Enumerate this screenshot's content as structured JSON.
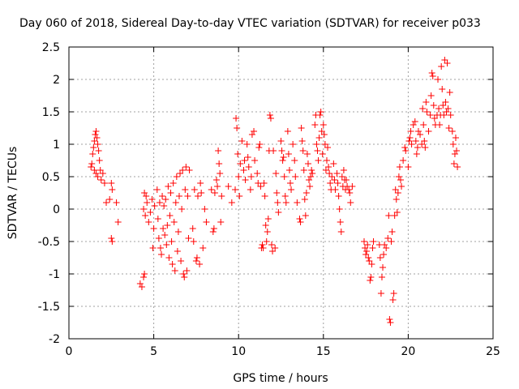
{
  "chart_data": {
    "type": "scatter",
    "title": "Day 060 of 2018, Sidereal Day-to-day VTEC variation (SDTVAR) for receiver p033",
    "xlabel": "GPS time / hours",
    "ylabel": "SDTVAR / TECUs",
    "xlim": [
      0,
      25
    ],
    "ylim": [
      -2,
      2.5
    ],
    "xticks": [
      0,
      5,
      10,
      15,
      20,
      25
    ],
    "xtick_labels": [
      "0",
      "5",
      "10",
      "15",
      "20",
      "25"
    ],
    "yticks": [
      -2,
      -1.5,
      -1,
      -0.5,
      0,
      0.5,
      1,
      1.5,
      2,
      2.5
    ],
    "ytick_labels": [
      "-2",
      "-1.5",
      "-1",
      "-0.5",
      "0",
      "0.5",
      "1",
      "1.5",
      "2",
      "2.5"
    ],
    "grid": true,
    "marker": "+",
    "color": "#ff0000",
    "series": [
      {
        "name": "SDTVAR",
        "points": [
          [
            1.3,
            0.65
          ],
          [
            1.35,
            0.7
          ],
          [
            1.4,
            0.85
          ],
          [
            1.45,
            0.95
          ],
          [
            1.5,
            1.05
          ],
          [
            1.55,
            1.15
          ],
          [
            1.6,
            1.2
          ],
          [
            1.65,
            1.1
          ],
          [
            1.7,
            1.0
          ],
          [
            1.75,
            0.9
          ],
          [
            1.8,
            0.75
          ],
          [
            1.5,
            0.6
          ],
          [
            1.6,
            0.55
          ],
          [
            1.7,
            0.5
          ],
          [
            1.85,
            0.6
          ],
          [
            1.9,
            0.45
          ],
          [
            2.0,
            0.55
          ],
          [
            2.1,
            0.4
          ],
          [
            2.2,
            0.1
          ],
          [
            2.4,
            0.15
          ],
          [
            2.5,
            0.4
          ],
          [
            2.55,
            0.3
          ],
          [
            2.5,
            -0.45
          ],
          [
            2.55,
            -0.5
          ],
          [
            2.8,
            0.1
          ],
          [
            2.9,
            -0.2
          ],
          [
            4.2,
            -1.15
          ],
          [
            4.3,
            -1.2
          ],
          [
            4.4,
            0.0
          ],
          [
            4.45,
            0.25
          ],
          [
            4.5,
            -0.1
          ],
          [
            4.55,
            0.2
          ],
          [
            4.4,
            -1.05
          ],
          [
            4.45,
            -1.0
          ],
          [
            4.6,
            0.1
          ],
          [
            4.7,
            -0.2
          ],
          [
            4.8,
            -0.05
          ],
          [
            4.9,
            0.15
          ],
          [
            4.95,
            -0.6
          ],
          [
            5.0,
            -0.3
          ],
          [
            5.05,
            0.05
          ],
          [
            5.2,
            0.3
          ],
          [
            5.25,
            -0.15
          ],
          [
            5.3,
            -0.45
          ],
          [
            5.35,
            0.1
          ],
          [
            5.4,
            -0.6
          ],
          [
            5.45,
            -0.7
          ],
          [
            5.5,
            0.2
          ],
          [
            5.55,
            -0.3
          ],
          [
            5.6,
            0.05
          ],
          [
            5.65,
            -0.4
          ],
          [
            5.7,
            0.15
          ],
          [
            5.75,
            -0.55
          ],
          [
            5.8,
            -0.25
          ],
          [
            5.85,
            0.35
          ],
          [
            5.9,
            -0.75
          ],
          [
            5.95,
            -0.1
          ],
          [
            6.0,
            0.25
          ],
          [
            6.05,
            -0.5
          ],
          [
            6.1,
            -0.85
          ],
          [
            6.15,
            0.4
          ],
          [
            6.2,
            -0.2
          ],
          [
            6.25,
            -0.95
          ],
          [
            6.3,
            0.1
          ],
          [
            6.35,
            0.5
          ],
          [
            6.4,
            -0.65
          ],
          [
            6.45,
            -0.35
          ],
          [
            6.5,
            0.2
          ],
          [
            6.55,
            0.55
          ],
          [
            6.6,
            -0.8
          ],
          [
            6.65,
            0.0
          ],
          [
            6.7,
            0.6
          ],
          [
            6.75,
            -1.0
          ],
          [
            6.8,
            -1.05
          ],
          [
            6.85,
            0.3
          ],
          [
            6.9,
            0.65
          ],
          [
            6.95,
            -0.95
          ],
          [
            7.0,
            0.2
          ],
          [
            7.05,
            -0.45
          ],
          [
            7.1,
            0.6
          ],
          [
            7.3,
            -0.3
          ],
          [
            7.35,
            -0.5
          ],
          [
            7.4,
            0.3
          ],
          [
            7.5,
            -0.8
          ],
          [
            7.55,
            -0.75
          ],
          [
            7.6,
            0.2
          ],
          [
            7.7,
            -0.85
          ],
          [
            7.75,
            0.4
          ],
          [
            7.8,
            0.25
          ],
          [
            7.9,
            -0.6
          ],
          [
            8.0,
            0.0
          ],
          [
            8.1,
            -0.2
          ],
          [
            8.4,
            0.3
          ],
          [
            8.5,
            -0.35
          ],
          [
            8.55,
            -0.3
          ],
          [
            8.6,
            0.25
          ],
          [
            8.7,
            0.45
          ],
          [
            8.75,
            0.35
          ],
          [
            8.8,
            0.9
          ],
          [
            8.85,
            0.7
          ],
          [
            8.9,
            0.55
          ],
          [
            8.95,
            -0.2
          ],
          [
            9.0,
            0.2
          ],
          [
            9.4,
            0.35
          ],
          [
            9.6,
            0.1
          ],
          [
            9.8,
            0.3
          ],
          [
            9.85,
            1.4
          ],
          [
            9.9,
            1.25
          ],
          [
            9.95,
            0.85
          ],
          [
            10.0,
            0.5
          ],
          [
            10.05,
            0.2
          ],
          [
            10.1,
            0.7
          ],
          [
            10.2,
            1.05
          ],
          [
            10.3,
            0.6
          ],
          [
            10.35,
            0.75
          ],
          [
            10.4,
            0.45
          ],
          [
            10.5,
            1.0
          ],
          [
            10.55,
            0.8
          ],
          [
            10.6,
            0.65
          ],
          [
            10.7,
            0.3
          ],
          [
            10.75,
            0.5
          ],
          [
            10.8,
            1.15
          ],
          [
            10.9,
            1.2
          ],
          [
            10.95,
            0.75
          ],
          [
            11.1,
            0.55
          ],
          [
            11.15,
            0.4
          ],
          [
            11.2,
            0.95
          ],
          [
            11.25,
            1.0
          ],
          [
            11.3,
            0.35
          ],
          [
            11.35,
            -0.6
          ],
          [
            11.4,
            -0.55
          ],
          [
            11.45,
            -0.6
          ],
          [
            11.5,
            0.4
          ],
          [
            11.55,
            0.2
          ],
          [
            11.6,
            -0.25
          ],
          [
            11.65,
            -0.5
          ],
          [
            11.7,
            -0.35
          ],
          [
            11.75,
            -0.15
          ],
          [
            11.8,
            0.9
          ],
          [
            11.85,
            1.45
          ],
          [
            11.9,
            1.4
          ],
          [
            11.95,
            -0.55
          ],
          [
            12.0,
            -0.65
          ],
          [
            12.05,
            0.9
          ],
          [
            12.15,
            -0.6
          ],
          [
            12.2,
            0.55
          ],
          [
            12.25,
            0.25
          ],
          [
            12.3,
            0.1
          ],
          [
            12.35,
            -0.05
          ],
          [
            12.5,
            1.05
          ],
          [
            12.55,
            0.9
          ],
          [
            12.6,
            0.75
          ],
          [
            12.65,
            0.8
          ],
          [
            12.7,
            0.5
          ],
          [
            12.75,
            0.2
          ],
          [
            12.8,
            0.1
          ],
          [
            12.9,
            1.2
          ],
          [
            12.95,
            0.85
          ],
          [
            13.0,
            0.6
          ],
          [
            13.05,
            0.4
          ],
          [
            13.1,
            0.3
          ],
          [
            13.2,
            1.0
          ],
          [
            13.3,
            0.75
          ],
          [
            13.35,
            0.5
          ],
          [
            13.45,
            0.1
          ],
          [
            13.6,
            -0.15
          ],
          [
            13.65,
            -0.2
          ],
          [
            13.7,
            1.25
          ],
          [
            13.75,
            1.05
          ],
          [
            13.8,
            0.9
          ],
          [
            13.85,
            0.6
          ],
          [
            13.9,
            0.15
          ],
          [
            13.95,
            -0.1
          ],
          [
            14.0,
            0.25
          ],
          [
            14.05,
            0.85
          ],
          [
            14.1,
            0.7
          ],
          [
            14.15,
            0.45
          ],
          [
            14.2,
            0.35
          ],
          [
            14.25,
            0.5
          ],
          [
            14.3,
            0.6
          ],
          [
            14.35,
            0.55
          ],
          [
            14.5,
            1.3
          ],
          [
            14.55,
            1.45
          ],
          [
            14.6,
            1.0
          ],
          [
            14.65,
            0.9
          ],
          [
            14.7,
            0.75
          ],
          [
            14.75,
            1.1
          ],
          [
            14.8,
            1.45
          ],
          [
            14.85,
            1.5
          ],
          [
            14.9,
            1.2
          ],
          [
            14.95,
            0.85
          ],
          [
            15.0,
            1.3
          ],
          [
            15.05,
            1.15
          ],
          [
            15.1,
            1.0
          ],
          [
            15.15,
            0.6
          ],
          [
            15.2,
            0.75
          ],
          [
            15.25,
            0.95
          ],
          [
            15.3,
            0.65
          ],
          [
            15.35,
            0.55
          ],
          [
            15.4,
            0.4
          ],
          [
            15.45,
            0.3
          ],
          [
            15.5,
            0.5
          ],
          [
            15.6,
            0.7
          ],
          [
            15.65,
            0.45
          ],
          [
            15.7,
            0.3
          ],
          [
            15.8,
            0.55
          ],
          [
            15.85,
            0.4
          ],
          [
            15.9,
            0.2
          ],
          [
            15.95,
            0.0
          ],
          [
            16.0,
            -0.2
          ],
          [
            16.05,
            -0.35
          ],
          [
            16.1,
            0.5
          ],
          [
            16.15,
            0.35
          ],
          [
            16.2,
            0.6
          ],
          [
            16.25,
            0.45
          ],
          [
            16.3,
            0.3
          ],
          [
            16.35,
            0.45
          ],
          [
            16.4,
            0.35
          ],
          [
            16.5,
            0.3
          ],
          [
            16.55,
            0.25
          ],
          [
            16.6,
            0.1
          ],
          [
            16.7,
            0.35
          ],
          [
            17.4,
            -0.5
          ],
          [
            17.45,
            -0.6
          ],
          [
            17.5,
            -0.7
          ],
          [
            17.55,
            -0.65
          ],
          [
            17.6,
            -0.55
          ],
          [
            17.65,
            -0.75
          ],
          [
            17.7,
            -0.8
          ],
          [
            17.75,
            -1.1
          ],
          [
            17.8,
            -1.05
          ],
          [
            17.85,
            -0.85
          ],
          [
            17.9,
            -0.6
          ],
          [
            17.95,
            -0.5
          ],
          [
            18.3,
            -0.55
          ],
          [
            18.35,
            -0.75
          ],
          [
            18.4,
            -1.3
          ],
          [
            18.45,
            -1.05
          ],
          [
            18.5,
            -0.9
          ],
          [
            18.55,
            -0.7
          ],
          [
            18.6,
            -0.55
          ],
          [
            18.7,
            -0.6
          ],
          [
            18.8,
            -0.45
          ],
          [
            18.85,
            -0.1
          ],
          [
            18.9,
            -1.7
          ],
          [
            18.95,
            -1.75
          ],
          [
            19.0,
            -0.5
          ],
          [
            19.05,
            -0.35
          ],
          [
            19.1,
            -1.4
          ],
          [
            19.15,
            -1.3
          ],
          [
            19.2,
            -0.1
          ],
          [
            19.25,
            0.3
          ],
          [
            19.3,
            0.15
          ],
          [
            19.35,
            -0.05
          ],
          [
            19.4,
            0.25
          ],
          [
            19.45,
            0.5
          ],
          [
            19.5,
            0.65
          ],
          [
            19.55,
            0.45
          ],
          [
            19.6,
            0.35
          ],
          [
            19.7,
            0.75
          ],
          [
            19.8,
            0.95
          ],
          [
            19.85,
            0.9
          ],
          [
            20.0,
            0.65
          ],
          [
            20.05,
            1.05
          ],
          [
            20.1,
            1.1
          ],
          [
            20.15,
            1.2
          ],
          [
            20.2,
            1.0
          ],
          [
            20.3,
            1.3
          ],
          [
            20.4,
            1.35
          ],
          [
            20.45,
            1.05
          ],
          [
            20.5,
            0.85
          ],
          [
            20.55,
            0.95
          ],
          [
            20.6,
            1.2
          ],
          [
            20.7,
            1.15
          ],
          [
            20.8,
            1.0
          ],
          [
            20.85,
            1.55
          ],
          [
            20.9,
            1.3
          ],
          [
            20.95,
            1.05
          ],
          [
            21.0,
            0.95
          ],
          [
            21.05,
            1.65
          ],
          [
            21.1,
            1.5
          ],
          [
            21.2,
            1.2
          ],
          [
            21.3,
            1.45
          ],
          [
            21.35,
            1.75
          ],
          [
            21.4,
            2.1
          ],
          [
            21.45,
            2.05
          ],
          [
            21.5,
            1.6
          ],
          [
            21.55,
            1.4
          ],
          [
            21.6,
            1.3
          ],
          [
            21.7,
            1.45
          ],
          [
            21.75,
            2.0
          ],
          [
            21.8,
            1.55
          ],
          [
            21.85,
            1.3
          ],
          [
            21.9,
            1.45
          ],
          [
            21.95,
            2.2
          ],
          [
            22.0,
            1.85
          ],
          [
            22.05,
            1.6
          ],
          [
            22.1,
            1.45
          ],
          [
            22.15,
            2.3
          ],
          [
            22.2,
            1.65
          ],
          [
            22.25,
            1.5
          ],
          [
            22.3,
            2.25
          ],
          [
            22.35,
            1.55
          ],
          [
            22.4,
            1.25
          ],
          [
            22.45,
            1.8
          ],
          [
            22.5,
            1.45
          ],
          [
            22.6,
            1.2
          ],
          [
            22.65,
            1.0
          ],
          [
            22.7,
            0.7
          ],
          [
            22.75,
            0.85
          ],
          [
            22.8,
            1.1
          ],
          [
            22.85,
            0.9
          ],
          [
            22.9,
            0.65
          ]
        ]
      }
    ]
  }
}
